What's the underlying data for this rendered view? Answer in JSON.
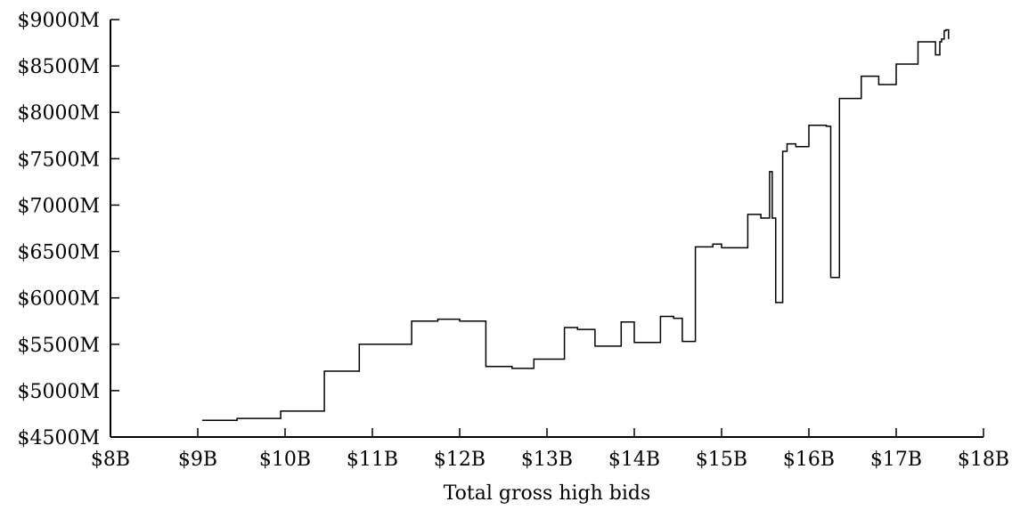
{
  "chart_data": {
    "type": "line",
    "title": "",
    "xlabel": "Total gross high bids",
    "ylabel": "",
    "xlim": [
      8,
      18
    ],
    "ylim": [
      4500,
      9000
    ],
    "x_ticks": [
      8,
      9,
      10,
      11,
      12,
      13,
      14,
      15,
      16,
      17,
      18
    ],
    "x_tick_labels": [
      "$8B",
      "$9B",
      "$10B",
      "$11B",
      "$12B",
      "$13B",
      "$14B",
      "$15B",
      "$16B",
      "$17B",
      "$18B"
    ],
    "y_ticks": [
      4500,
      5000,
      5500,
      6000,
      6500,
      7000,
      7500,
      8000,
      8500,
      9000
    ],
    "y_tick_labels": [
      "$4500M",
      "$5000M",
      "$5500M",
      "$6000M",
      "$6500M",
      "$7000M",
      "$7500M",
      "$8000M",
      "$8500M",
      "$9000M"
    ],
    "grid": false,
    "legend": "none",
    "line_color": "#000000",
    "series": [
      {
        "step": "post",
        "x": [
          9.05,
          9.45,
          9.95,
          10.45,
          10.85,
          11.45,
          11.75,
          12.0,
          12.3,
          12.6,
          12.85,
          13.2,
          13.35,
          13.55,
          13.85,
          14.0,
          14.3,
          14.45,
          14.55,
          14.7,
          14.9,
          15.0,
          15.3,
          15.45,
          15.55,
          15.58,
          15.62,
          15.7,
          15.75,
          15.85,
          16.0,
          16.2,
          16.25,
          16.35,
          16.6,
          16.8,
          17.0,
          17.25,
          17.45,
          17.5,
          17.52,
          17.55,
          17.57,
          17.6
        ],
        "y": [
          4680,
          4700,
          4780,
          5210,
          5500,
          5750,
          5770,
          5750,
          5260,
          5240,
          5340,
          5680,
          5660,
          5480,
          5740,
          5520,
          5800,
          5780,
          5530,
          6550,
          6580,
          6540,
          6900,
          6860,
          7360,
          6860,
          5950,
          7580,
          7660,
          7630,
          7860,
          7850,
          6220,
          8150,
          8390,
          8300,
          8520,
          8760,
          8620,
          8760,
          8790,
          8880,
          8890,
          8790
        ]
      }
    ]
  }
}
